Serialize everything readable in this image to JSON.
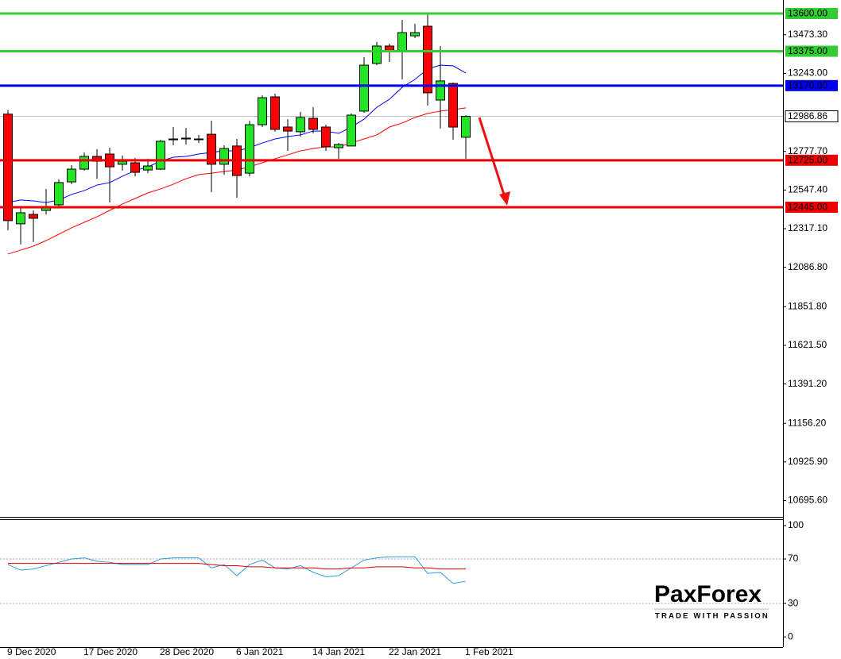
{
  "chart_data": [
    {
      "type": "candlestick",
      "categories": [
        "9 Dec 2020",
        null,
        null,
        null,
        null,
        null,
        "17 Dec 2020",
        null,
        null,
        null,
        null,
        null,
        "28 Dec 2020",
        null,
        null,
        null,
        null,
        null,
        "6 Jan 2021",
        null,
        null,
        null,
        null,
        null,
        "14 Jan 2021",
        null,
        null,
        null,
        null,
        null,
        "22 Jan 2021",
        null,
        null,
        null,
        null,
        null,
        "1 Feb 2021"
      ],
      "open": [
        13000,
        12346,
        12402,
        12426,
        12459,
        12596,
        12672,
        12748,
        12762,
        12701,
        12710,
        12667,
        12672,
        12847,
        12852,
        12852,
        12880,
        12701,
        12810,
        12648,
        12937,
        13103,
        12923,
        12895,
        12975,
        12923,
        12800,
        12810,
        13018,
        13302,
        13406,
        13378,
        13467,
        13524,
        13084,
        13183,
        12862
      ],
      "high": [
        13025,
        12440,
        12426,
        12554,
        12611,
        12696,
        12772,
        12791,
        12800,
        12753,
        12738,
        12734,
        12847,
        12923,
        12918,
        12876,
        12961,
        12814,
        12852,
        12961,
        13112,
        13122,
        12970,
        13013,
        13041,
        12937,
        12828,
        13004,
        13340,
        13430,
        13420,
        13562,
        13538,
        13595,
        13406,
        13188,
        12994
      ],
      "low": [
        12308,
        12223,
        12237,
        12402,
        12440,
        12582,
        12663,
        12615,
        12473,
        12663,
        12629,
        12648,
        12667,
        12814,
        12819,
        12828,
        12535,
        12639,
        12502,
        12629,
        12923,
        12895,
        12781,
        12866,
        12885,
        12781,
        12734,
        12810,
        13008,
        13292,
        13311,
        13207,
        13453,
        13051,
        12914,
        12848,
        12734
      ],
      "close": [
        12365,
        12412,
        12379,
        12450,
        12592,
        12672,
        12748,
        12719,
        12686,
        12719,
        12653,
        12691,
        12838,
        12852,
        12857,
        12852,
        12701,
        12795,
        12634,
        12937,
        13098,
        12909,
        12899,
        12980,
        12909,
        12805,
        12819,
        12994,
        13292,
        13406,
        13378,
        13486,
        13486,
        13127,
        13198,
        12923,
        12986.86
      ],
      "up_color": "#22e622",
      "down_color": "#ff0000",
      "overlays": [
        {
          "color": "#0000ff",
          "values": [
            12473,
            12488,
            12483,
            12473,
            12488,
            12521,
            12544,
            12577,
            12592,
            12630,
            12663,
            12686,
            12719,
            12743,
            12748,
            12762,
            12772,
            12781,
            12781,
            12800,
            12828,
            12852,
            12866,
            12876,
            12899,
            12899,
            12885,
            12923,
            12970,
            13041,
            13089,
            13160,
            13207,
            13269,
            13292,
            13288,
            13245
          ]
        },
        {
          "color": "#ff0000",
          "values": [
            12166,
            12189,
            12213,
            12246,
            12284,
            12322,
            12355,
            12388,
            12426,
            12464,
            12497,
            12530,
            12554,
            12582,
            12615,
            12639,
            12648,
            12658,
            12667,
            12686,
            12710,
            12734,
            12757,
            12781,
            12795,
            12805,
            12805,
            12828,
            12852,
            12876,
            12923,
            12947,
            12980,
            13004,
            13018,
            13027,
            13037
          ]
        }
      ],
      "levels": [
        {
          "value": 13600,
          "label": "13600.00",
          "color": "#33cc33"
        },
        {
          "value": 13375,
          "label": "13375.00",
          "color": "#33cc33"
        },
        {
          "value": 13170,
          "label": "13170.00",
          "color": "#0000ee"
        },
        {
          "value": 12725,
          "label": "12725.00",
          "color": "#ee0000"
        },
        {
          "value": 12445,
          "label": "12445.00",
          "color": "#ee0000"
        }
      ],
      "last_price": 12986.86,
      "ylim": [
        10603.4,
        13680.5
      ],
      "yticks": [
        {
          "value": 13473.3,
          "label": "13473.30"
        },
        {
          "value": 13243,
          "label": "13243.00"
        },
        {
          "value": 12777.7,
          "label": "12777.70"
        },
        {
          "value": 12547.4,
          "label": "12547.40"
        },
        {
          "value": 12317.1,
          "label": "12317.10"
        },
        {
          "value": 12086.8,
          "label": "12086.80"
        },
        {
          "value": 11851.8,
          "label": "11851.80"
        },
        {
          "value": 11621.5,
          "label": "11621.50"
        },
        {
          "value": 11391.2,
          "label": "11391.20"
        },
        {
          "value": 11156.2,
          "label": "11156.20"
        },
        {
          "value": 10925.9,
          "label": "10925.90"
        },
        {
          "value": 10695.6,
          "label": "10695.60"
        }
      ]
    },
    {
      "type": "line",
      "series": [
        {
          "color": "#3399dd",
          "values": [
            65,
            60,
            61,
            64,
            67,
            70,
            71,
            68,
            67,
            65,
            65,
            65,
            70,
            71,
            71,
            71,
            62,
            65,
            55,
            65,
            69,
            62,
            61,
            64,
            58,
            54,
            55,
            62,
            69,
            71,
            72,
            72,
            72,
            57,
            58,
            48,
            50
          ]
        },
        {
          "color": "#dd0000",
          "values": [
            66,
            66,
            66,
            66,
            66,
            66,
            66,
            66,
            66,
            66,
            66,
            66,
            66,
            66,
            66,
            66,
            65,
            64,
            64,
            63,
            63,
            62,
            62,
            62,
            62,
            61,
            61,
            62,
            62,
            63,
            63,
            63,
            62,
            62,
            61,
            61,
            61
          ]
        }
      ],
      "ylim": [
        -9.2,
        105
      ],
      "yticks": [
        0,
        30,
        70,
        100
      ],
      "levels": [
        30,
        70
      ]
    }
  ],
  "watermark": {
    "title": "PaxForex",
    "tagline": "TRADE WITH PASSION"
  }
}
